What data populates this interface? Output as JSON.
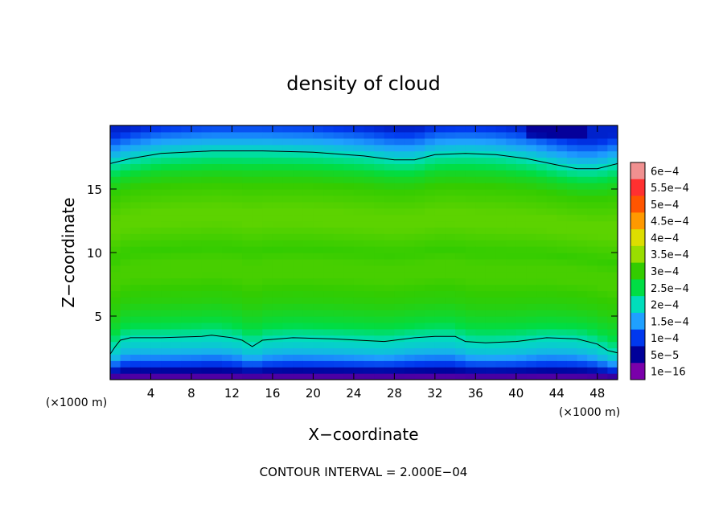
{
  "chart_data": {
    "type": "heatmap",
    "title": "density of cloud",
    "xlabel": "X−coordinate",
    "ylabel": "Z−coordinate",
    "x_unit": "(×1000 m)",
    "y_unit": "(×1000 m)",
    "xlim": [
      0,
      50
    ],
    "ylim": [
      0,
      20
    ],
    "x_ticks": [
      "4",
      "8",
      "12",
      "16",
      "20",
      "24",
      "28",
      "32",
      "36",
      "40",
      "44",
      "48"
    ],
    "y_ticks": [
      "5",
      "10",
      "15"
    ],
    "footer": "CONTOUR INTERVAL = 2.000E−04",
    "colorbar": {
      "labels": [
        "6e−4",
        "5.5e−4",
        "5e−4",
        "4.5e−4",
        "4e−4",
        "3.5e−4",
        "3e−4",
        "2.5e−4",
        "2e−4",
        "1.5e−4",
        "1e−4",
        "5e−5",
        "1e−16"
      ],
      "colors": [
        "#f09090",
        "#ff3030",
        "#ff5500",
        "#ff9900",
        "#dddd00",
        "#99dd00",
        "#33cc00",
        "#00dd44",
        "#00ddbb",
        "#1fa0ff",
        "#0038ee",
        "#000099",
        "#7a00aa"
      ]
    },
    "contour_levels": [
      0.0002
    ],
    "contours": {
      "upper_2e-4": {
        "x": [
          0,
          2,
          5,
          10,
          15,
          20,
          25,
          28,
          30,
          32,
          35,
          38,
          41,
          44,
          46,
          48,
          50
        ],
        "z": [
          17.0,
          17.4,
          17.8,
          18.0,
          18.0,
          17.9,
          17.6,
          17.3,
          17.3,
          17.7,
          17.8,
          17.7,
          17.4,
          16.9,
          16.6,
          16.6,
          17.0
        ]
      },
      "lower_2e-4": {
        "x": [
          0,
          0.5,
          1,
          2,
          5,
          9,
          10,
          12,
          13,
          14,
          15,
          18,
          22,
          27,
          30,
          32,
          34,
          35,
          37,
          40,
          43,
          46,
          48,
          49,
          50
        ],
        "z": [
          2.0,
          2.6,
          3.1,
          3.3,
          3.3,
          3.4,
          3.5,
          3.3,
          3.1,
          2.6,
          3.1,
          3.3,
          3.2,
          3.0,
          3.3,
          3.4,
          3.4,
          3.0,
          2.9,
          3.0,
          3.3,
          3.2,
          2.8,
          2.3,
          2.1
        ]
      }
    },
    "profile_z": [
      0,
      0.4,
      0.8,
      1.2,
      1.6,
      2.0,
      2.4,
      2.8,
      3.2,
      3.6,
      4.2,
      5,
      6,
      7,
      8,
      9,
      10,
      11,
      12,
      13,
      14,
      15,
      16,
      16.8,
      17.4,
      18,
      18.6,
      19.2,
      19.8
    ],
    "profile_density": [
      1e-07,
      3e-05,
      6e-05,
      0.0001,
      0.00013,
      0.00016,
      0.00018,
      0.00019,
      0.0002,
      0.00022,
      0.00025,
      0.00027,
      0.00029,
      0.0003,
      0.00031,
      0.00031,
      0.0003,
      0.00031,
      0.00032,
      0.00032,
      0.00031,
      0.0003,
      0.00027,
      0.00023,
      0.0002,
      0.00017,
      0.00014,
      0.00011,
      8e-05
    ]
  }
}
